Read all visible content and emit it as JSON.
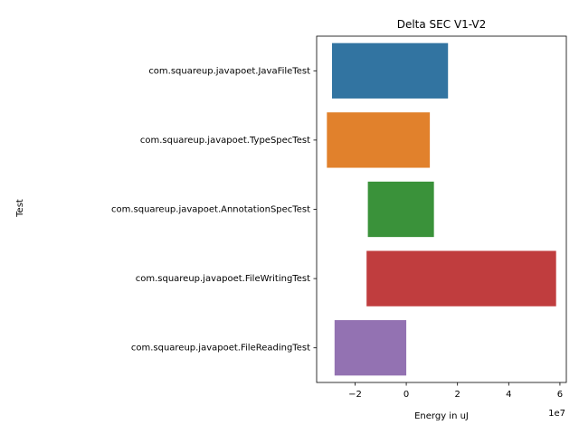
{
  "chart_data": {
    "type": "bar",
    "orientation": "horizontal",
    "title": "Delta SEC V1-V2",
    "xlabel": "Energy in uJ",
    "ylabel": "Test",
    "x_scale_label": "1e7",
    "x_unit_multiplier": 10000000,
    "xlim": [
      -3.5,
      6.25
    ],
    "xticks": [
      -2,
      0,
      2,
      4,
      6
    ],
    "xtick_labels": [
      "−2",
      "0",
      "2",
      "4",
      "6"
    ],
    "grid": false,
    "legend": "none",
    "bars": [
      {
        "category": "com.squareup.javapoet.JavaFileTest",
        "start": -2.9,
        "end": 1.63,
        "color": "#3274a1"
      },
      {
        "category": "com.squareup.javapoet.TypeSpecTest",
        "start": -3.1,
        "end": 0.92,
        "color": "#e1812c"
      },
      {
        "category": "com.squareup.javapoet.AnnotationSpecTest",
        "start": -1.5,
        "end": 1.08,
        "color": "#3a923a"
      },
      {
        "category": "com.squareup.javapoet.FileWritingTest",
        "start": -1.55,
        "end": 5.85,
        "color": "#c03d3e"
      },
      {
        "category": "com.squareup.javapoet.FileReadingTest",
        "start": -2.8,
        "end": 0.0,
        "color": "#9372b2"
      }
    ]
  }
}
